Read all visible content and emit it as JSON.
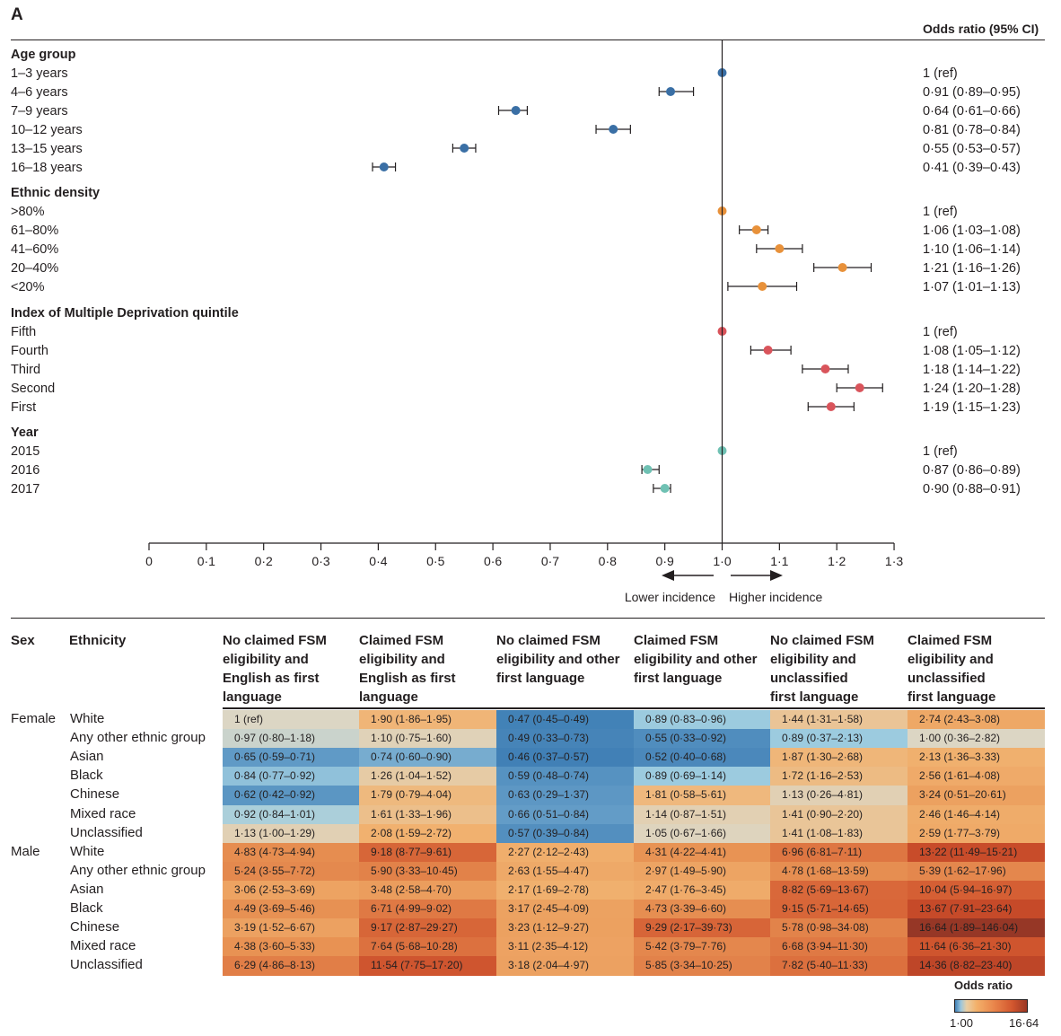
{
  "panel_label": "A",
  "forest": {
    "or_header": "Odds ratio (95% CI)",
    "lower_label": "Lower incidence",
    "higher_label": "Higher incidence"
  },
  "chart_data": [
    {
      "type": "scatter",
      "subtype": "forest_plot",
      "xlim": [
        0,
        1.3
      ],
      "x_ticks": [
        "0",
        "0·1",
        "0·2",
        "0·3",
        "0·4",
        "0·5",
        "0·6",
        "0·7",
        "0·8",
        "0·9",
        "1·0",
        "1·1",
        "1·2",
        "1·3"
      ],
      "reference_line": 1.0,
      "groups": [
        {
          "name": "Age group",
          "color": "#3a6fa5",
          "rows": [
            {
              "label": "1–3 years",
              "or": 1.0,
              "lo": 1.0,
              "hi": 1.0,
              "text": "1 (ref)"
            },
            {
              "label": "4–6 years",
              "or": 0.91,
              "lo": 0.89,
              "hi": 0.95,
              "text": "0·91 (0·89–0·95)"
            },
            {
              "label": "7–9 years",
              "or": 0.64,
              "lo": 0.61,
              "hi": 0.66,
              "text": "0·64 (0·61–0·66)"
            },
            {
              "label": "10–12 years",
              "or": 0.81,
              "lo": 0.78,
              "hi": 0.84,
              "text": "0·81 (0·78–0·84)"
            },
            {
              "label": "13–15 years",
              "or": 0.55,
              "lo": 0.53,
              "hi": 0.57,
              "text": "0·55 (0·53–0·57)"
            },
            {
              "label": "16–18 years",
              "or": 0.41,
              "lo": 0.39,
              "hi": 0.43,
              "text": "0·41 (0·39–0·43)"
            }
          ]
        },
        {
          "name": "Ethnic density",
          "color": "#e8913a",
          "rows": [
            {
              "label": ">80%",
              "or": 1.0,
              "lo": 1.0,
              "hi": 1.0,
              "text": "1 (ref)"
            },
            {
              "label": "61–80%",
              "or": 1.06,
              "lo": 1.03,
              "hi": 1.08,
              "text": "1·06 (1·03–1·08)"
            },
            {
              "label": "41–60%",
              "or": 1.1,
              "lo": 1.06,
              "hi": 1.14,
              "text": "1·10 (1·06–1·14)"
            },
            {
              "label": "20–40%",
              "or": 1.21,
              "lo": 1.16,
              "hi": 1.26,
              "text": "1·21 (1·16–1·26)"
            },
            {
              "label": "<20%",
              "or": 1.07,
              "lo": 1.01,
              "hi": 1.13,
              "text": "1·07 (1·01–1·13)"
            }
          ]
        },
        {
          "name": "Index of Multiple Deprivation quintile",
          "color": "#d9545b",
          "rows": [
            {
              "label": "Fifth",
              "or": 1.0,
              "lo": 1.0,
              "hi": 1.0,
              "text": "1 (ref)"
            },
            {
              "label": "Fourth",
              "or": 1.08,
              "lo": 1.05,
              "hi": 1.12,
              "text": "1·08 (1·05–1·12)"
            },
            {
              "label": "Third",
              "or": 1.18,
              "lo": 1.14,
              "hi": 1.22,
              "text": "1·18 (1·14–1·22)"
            },
            {
              "label": "Second",
              "or": 1.24,
              "lo": 1.2,
              "hi": 1.28,
              "text": "1·24 (1·20–1·28)"
            },
            {
              "label": "First",
              "or": 1.19,
              "lo": 1.15,
              "hi": 1.23,
              "text": "1·19 (1·15–1·23)"
            }
          ]
        },
        {
          "name": "Year",
          "color": "#6fc1b3",
          "rows": [
            {
              "label": "2015",
              "or": 1.0,
              "lo": 1.0,
              "hi": 1.0,
              "text": "1 (ref)"
            },
            {
              "label": "2016",
              "or": 0.87,
              "lo": 0.86,
              "hi": 0.89,
              "text": "0·87 (0·86–0·89)"
            },
            {
              "label": "2017",
              "or": 0.9,
              "lo": 0.88,
              "hi": 0.91,
              "text": "0·90 (0·88–0·91)"
            }
          ]
        }
      ]
    },
    {
      "type": "heatmap",
      "legend_title": "Odds ratio",
      "legend_min": "1·00",
      "legend_max": "16·64",
      "scale": [
        1.0,
        16.64
      ],
      "header_sex": "Sex",
      "header_ethnicity": "Ethnicity",
      "columns": [
        "No claimed FSM eligibility and English as first language",
        "Claimed FSM eligibility and English as first language",
        "No claimed FSM eligibility and other first language",
        "Claimed FSM eligibility and other first language",
        "No claimed FSM eligibility and unclassified first language",
        "Claimed FSM eligibility and unclassified first language"
      ],
      "column_header_lines": [
        [
          "No claimed FSM",
          "eligibility and",
          "English as first",
          "language"
        ],
        [
          "Claimed FSM",
          "eligibility and",
          "English as first",
          "language"
        ],
        [
          "No claimed FSM",
          "eligibility and other",
          "first language"
        ],
        [
          "Claimed FSM",
          "eligibility and other",
          "first language"
        ],
        [
          "No claimed FSM",
          "eligibility and",
          "unclassified",
          "first language"
        ],
        [
          "Claimed FSM",
          "eligibility and",
          "unclassified",
          "first language"
        ]
      ],
      "rows": [
        {
          "sex": "Female",
          "ethnicity": "White",
          "values": [
            1.0,
            1.9,
            0.47,
            0.89,
            1.44,
            2.74
          ],
          "labels": [
            "1 (ref)",
            "1·90 (1·86–1·95)",
            "0·47 (0·45–0·49)",
            "0·89 (0·83–0·96)",
            "1·44 (1·31–1·58)",
            "2·74 (2·43–3·08)"
          ]
        },
        {
          "sex": "",
          "ethnicity": "Any other ethnic group",
          "values": [
            0.97,
            1.1,
            0.49,
            0.55,
            0.89,
            1.0
          ],
          "labels": [
            "0·97 (0·80–1·18)",
            "1·10 (0·75–1·60)",
            "0·49 (0·33–0·73)",
            "0·55 (0·33–0·92)",
            "0·89 (0·37–2·13)",
            "1·00 (0·36–2·82)"
          ]
        },
        {
          "sex": "",
          "ethnicity": "Asian",
          "values": [
            0.65,
            0.74,
            0.46,
            0.52,
            1.87,
            2.13
          ],
          "labels": [
            "0·65 (0·59–0·71)",
            "0·74 (0·60–0·90)",
            "0·46 (0·37–0·57)",
            "0·52 (0·40–0·68)",
            "1·87 (1·30–2·68)",
            "2·13 (1·36–3·33)"
          ]
        },
        {
          "sex": "",
          "ethnicity": "Black",
          "values": [
            0.84,
            1.26,
            0.59,
            0.89,
            1.72,
            2.56
          ],
          "labels": [
            "0·84 (0·77–0·92)",
            "1·26 (1·04–1·52)",
            "0·59 (0·48–0·74)",
            "0·89 (0·69–1·14)",
            "1·72 (1·16–2·53)",
            "2·56 (1·61–4·08)"
          ]
        },
        {
          "sex": "",
          "ethnicity": "Chinese",
          "values": [
            0.62,
            1.79,
            0.63,
            1.81,
            1.13,
            3.24
          ],
          "labels": [
            "0·62 (0·42–0·92)",
            "1·79 (0·79–4·04)",
            "0·63 (0·29–1·37)",
            "1·81 (0·58–5·61)",
            "1·13 (0·26–4·81)",
            "3·24 (0·51–20·61)"
          ]
        },
        {
          "sex": "",
          "ethnicity": "Mixed race",
          "values": [
            0.92,
            1.61,
            0.66,
            1.14,
            1.41,
            2.46
          ],
          "labels": [
            "0·92 (0·84–1·01)",
            "1·61 (1·33–1·96)",
            "0·66 (0·51–0·84)",
            "1·14 (0·87–1·51)",
            "1·41 (0·90–2·20)",
            "2·46 (1·46–4·14)"
          ]
        },
        {
          "sex": "",
          "ethnicity": "Unclassified",
          "values": [
            1.13,
            2.08,
            0.57,
            1.05,
            1.41,
            2.59
          ],
          "labels": [
            "1·13 (1·00–1·29)",
            "2·08 (1·59–2·72)",
            "0·57 (0·39–0·84)",
            "1·05 (0·67–1·66)",
            "1·41 (1·08–1·83)",
            "2·59 (1·77–3·79)"
          ]
        },
        {
          "sex": "Male",
          "ethnicity": "White",
          "values": [
            4.83,
            9.18,
            2.27,
            4.31,
            6.96,
            13.22
          ],
          "labels": [
            "4·83 (4·73–4·94)",
            "9·18 (8·77–9·61)",
            "2·27 (2·12–2·43)",
            "4·31 (4·22–4·41)",
            "6·96 (6·81–7·11)",
            "13·22 (11·49–15·21)"
          ]
        },
        {
          "sex": "",
          "ethnicity": "Any other ethnic group",
          "values": [
            5.24,
            5.9,
            2.63,
            2.97,
            4.78,
            5.39
          ],
          "labels": [
            "5·24 (3·55–7·72)",
            "5·90 (3·33–10·45)",
            "2·63 (1·55–4·47)",
            "2·97 (1·49–5·90)",
            "4·78 (1·68–13·59)",
            "5·39 (1·62–17·96)"
          ]
        },
        {
          "sex": "",
          "ethnicity": "Asian",
          "values": [
            3.06,
            3.48,
            2.17,
            2.47,
            8.82,
            10.04
          ],
          "labels": [
            "3·06 (2·53–3·69)",
            "3·48 (2·58–4·70)",
            "2·17 (1·69–2·78)",
            "2·47 (1·76–3·45)",
            "8·82 (5·69–13·67)",
            "10·04 (5·94–16·97)"
          ]
        },
        {
          "sex": "",
          "ethnicity": "Black",
          "values": [
            4.49,
            6.71,
            3.17,
            4.73,
            9.15,
            13.67
          ],
          "labels": [
            "4·49 (3·69–5·46)",
            "6·71 (4·99–9·02)",
            "3·17 (2·45–4·09)",
            "4·73 (3·39–6·60)",
            "9·15 (5·71–14·65)",
            "13·67 (7·91–23·64)"
          ]
        },
        {
          "sex": "",
          "ethnicity": "Chinese",
          "values": [
            3.19,
            9.17,
            3.23,
            9.29,
            5.78,
            16.64
          ],
          "labels": [
            "3·19 (1·52–6·67)",
            "9·17 (2·87–29·27)",
            "3·23 (1·12–9·27)",
            "9·29 (2·17–39·73)",
            "5·78 (0·98–34·08)",
            "16·64 (1·89–146·04)"
          ]
        },
        {
          "sex": "",
          "ethnicity": "Mixed race",
          "values": [
            4.38,
            7.64,
            3.11,
            5.42,
            6.68,
            11.64
          ],
          "labels": [
            "4·38 (3·60–5·33)",
            "7·64 (5·68–10·28)",
            "3·11 (2·35–4·12)",
            "5·42 (3·79–7·76)",
            "6·68 (3·94–11·30)",
            "11·64 (6·36–21·30)"
          ]
        },
        {
          "sex": "",
          "ethnicity": "Unclassified",
          "values": [
            6.29,
            11.54,
            3.18,
            5.85,
            7.82,
            14.36
          ],
          "labels": [
            "6·29 (4·86–8·13)",
            "11·54 (7·75–17·20)",
            "3·18 (2·04–4·97)",
            "5·85 (3·34–10·25)",
            "7·82 (5·40–11·33)",
            "14·36 (8·82–23·40)"
          ]
        }
      ]
    }
  ]
}
